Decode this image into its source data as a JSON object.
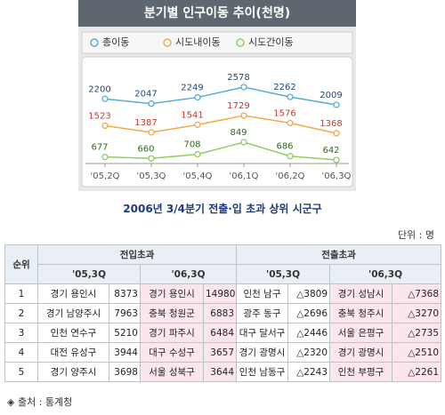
{
  "chart_data": {
    "type": "line",
    "title": "분기별 인구이동 추이(천명)",
    "categories": [
      "'05,2Q",
      "'05,3Q",
      "'05,4Q",
      "'06,1Q",
      "'06,2Q",
      "'06,3Q"
    ],
    "series": [
      {
        "name": "총이동",
        "color": "#5aaad8",
        "label_color": "#1a4a7a",
        "values": [
          2200,
          2047,
          2249,
          2578,
          2262,
          2009
        ]
      },
      {
        "name": "시도내이동",
        "color": "#f2a94a",
        "label_color": "#c0392b",
        "values": [
          1523,
          1387,
          1541,
          1729,
          1576,
          1368
        ]
      },
      {
        "name": "시도간이동",
        "color": "#8ccf62",
        "label_color": "#2e6b1a",
        "values": [
          677,
          660,
          708,
          849,
          686,
          642
        ]
      }
    ]
  },
  "table": {
    "title": "2006년 3/4분기 전출·입 초과 상위 시군구",
    "unit": "단위 : 명",
    "header": {
      "rank": "순위",
      "groups": [
        "전입초과",
        "전출초과"
      ],
      "periods": [
        "'05,3Q",
        "'06,3Q",
        "'05,3Q",
        "'06,3Q"
      ]
    },
    "rows": [
      [
        1,
        "경기 용인시",
        8373,
        "경기 용인시",
        14980,
        "인천 남구",
        "△3809",
        "경기 성남시",
        "△7368"
      ],
      [
        2,
        "경기 남양주시",
        7963,
        "충북 청원군",
        6883,
        "광주 동구",
        "△2696",
        "충북 청주시",
        "△3270"
      ],
      [
        3,
        "인천 연수구",
        5210,
        "경기 파주시",
        6484,
        "대구 달서구",
        "△2446",
        "서울 은평구",
        "△2735"
      ],
      [
        4,
        "대전 유성구",
        3944,
        "대구 수성구",
        3657,
        "경기 광명시",
        "△2320",
        "경기 광명시",
        "△2510"
      ],
      [
        5,
        "경기 양주시",
        3698,
        "서울 성북구",
        3644,
        "인천 남동구",
        "△2243",
        "인천 부평구",
        "△2261"
      ]
    ],
    "source": "◈ 출처 : 통계청"
  }
}
